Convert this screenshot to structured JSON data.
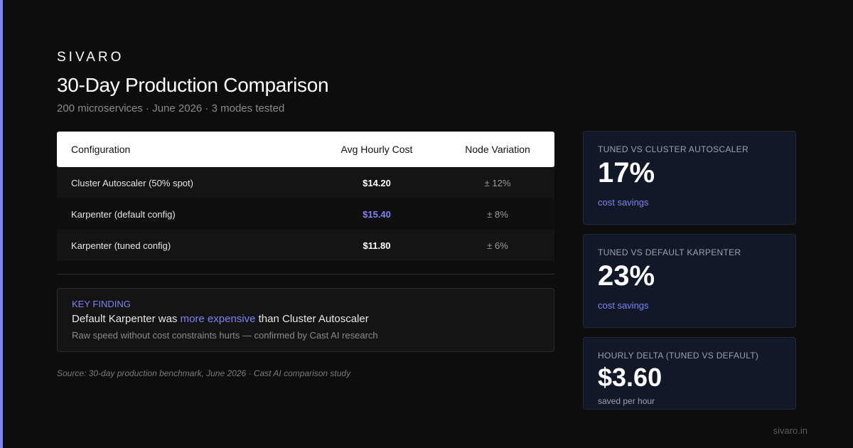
{
  "brand": "SIVARO",
  "title": "30-Day Production Comparison",
  "subtitle": "200 microservices · June 2026 · 3 modes tested",
  "table": {
    "headers": [
      "Configuration",
      "Avg Hourly Cost",
      "Node Variation"
    ],
    "rows": [
      {
        "config": "Cluster Autoscaler (50% spot)",
        "cost": "$14.20",
        "variation": "± 12%"
      },
      {
        "config": "Karpenter (default config)",
        "cost": "$15.40",
        "variation": "± 8%"
      },
      {
        "config": "Karpenter (tuned config)",
        "cost": "$11.80",
        "variation": "± 6%"
      }
    ],
    "highlight_color": "#7c83f2"
  },
  "finding": {
    "label": "KEY FINDING",
    "text_before": "Default Karpenter was ",
    "text_highlight": "more expensive",
    "text_after": " than Cluster Autoscaler",
    "note": "Raw speed without cost constraints hurts — confirmed by Cast AI research"
  },
  "source": "Source: 30-day production benchmark, June 2026 · Cast AI comparison study",
  "cards": [
    {
      "label": "TUNED VS CLUSTER AUTOSCALER",
      "value": "17%",
      "sub": "cost savings"
    },
    {
      "label": "TUNED VS DEFAULT KARPENTER",
      "value": "23%",
      "sub": "cost savings"
    },
    {
      "label": "HOURLY DELTA (TUNED VS DEFAULT)",
      "value": "$3.60",
      "sub": "saved per hour"
    }
  ],
  "footer": "sivaro.in",
  "colors": {
    "accent": "#7c83f2",
    "background": "#0d0d0d",
    "card_background": "#111827"
  }
}
